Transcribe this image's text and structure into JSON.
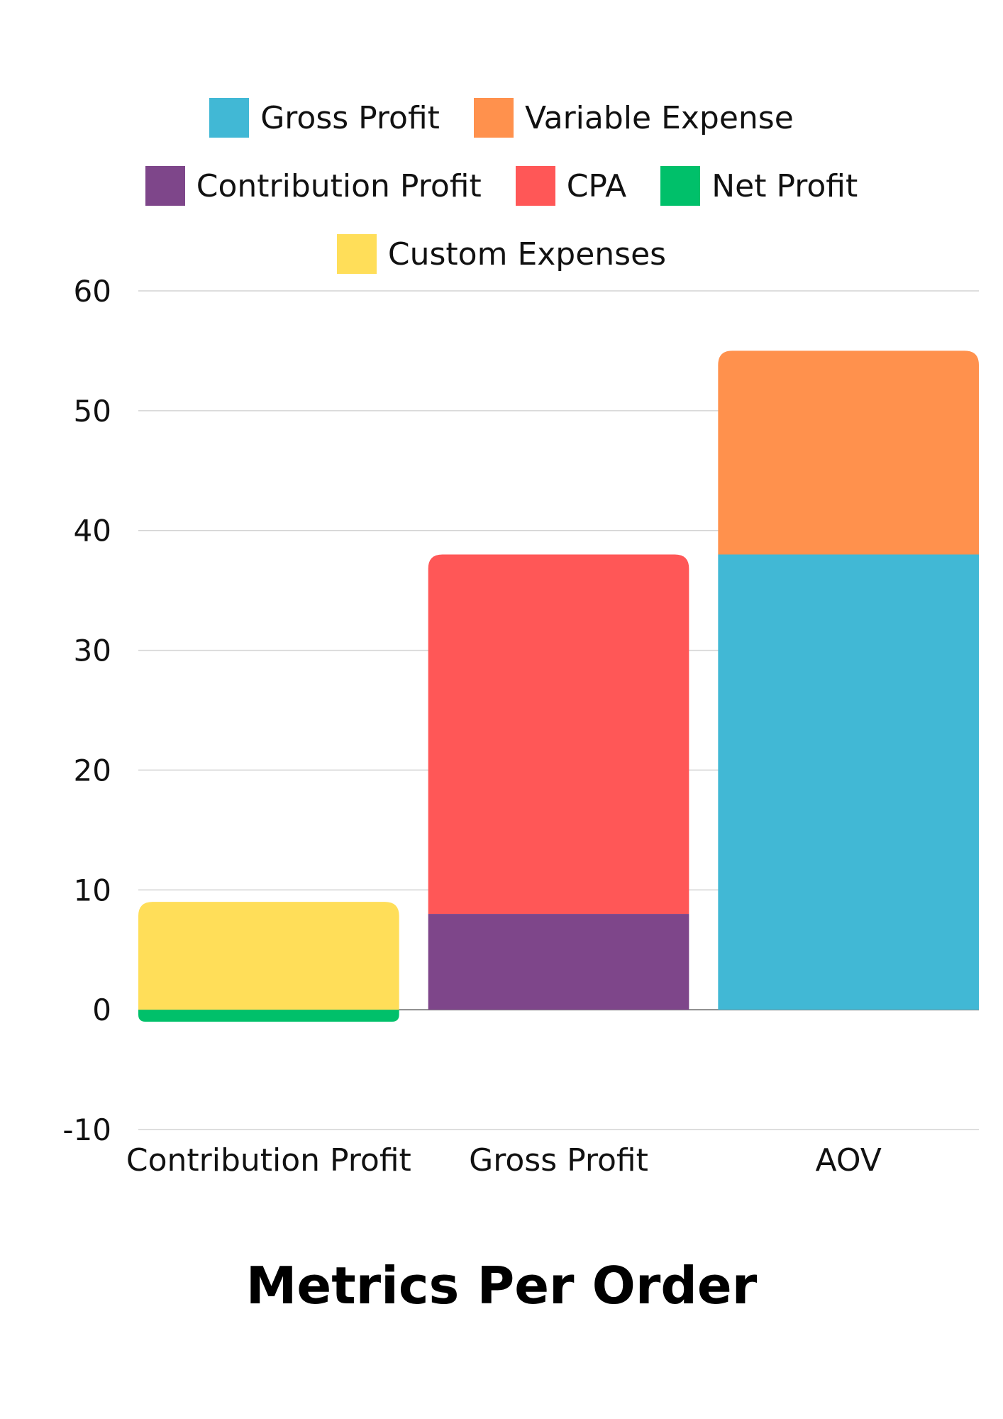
{
  "chart_data": {
    "type": "bar",
    "stacked": true,
    "title": "Metrics Per Order",
    "categories": [
      "Contribution Profit",
      "Gross Profit",
      "AOV"
    ],
    "series": [
      {
        "name": "Gross Profit",
        "color": "#41B8D5",
        "values": [
          0,
          0,
          38
        ]
      },
      {
        "name": "Variable Expense",
        "color": "#FF914D",
        "values": [
          0,
          0,
          17
        ]
      },
      {
        "name": "Contribution Profit",
        "color": "#7E468A",
        "values": [
          0,
          8,
          0
        ]
      },
      {
        "name": "CPA",
        "color": "#FF5757",
        "values": [
          0,
          30,
          0
        ]
      },
      {
        "name": "Net Profit",
        "color": "#00C06A",
        "values": [
          -1,
          0,
          0
        ]
      },
      {
        "name": "Custom Expenses",
        "color": "#FFDE59",
        "values": [
          9,
          0,
          0
        ]
      }
    ],
    "ylim": [
      -10,
      60
    ],
    "yticks": [
      60,
      50,
      40,
      30,
      20,
      10,
      0,
      -10
    ],
    "grid": true,
    "legend": "top"
  }
}
